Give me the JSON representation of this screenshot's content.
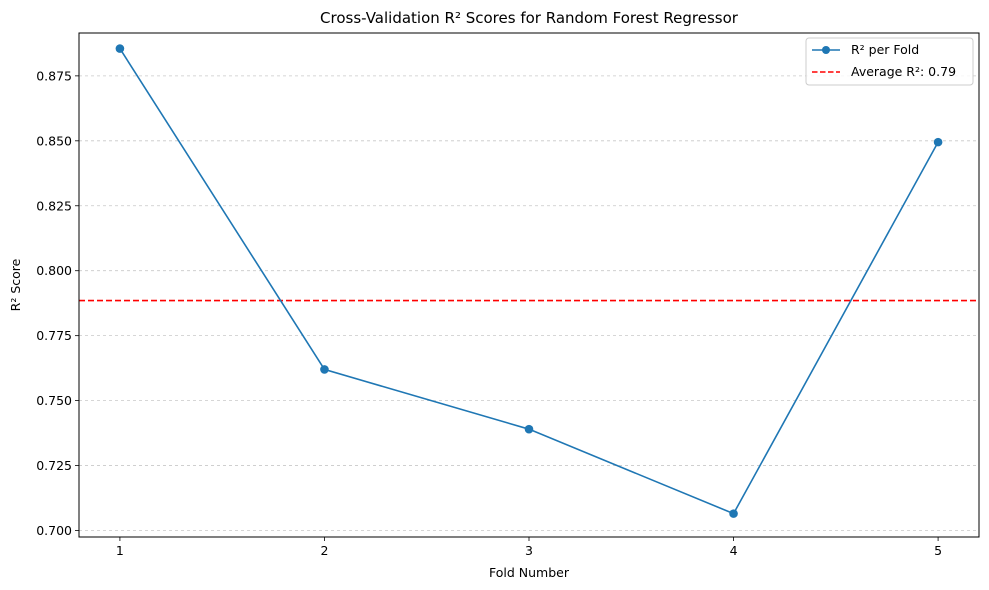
{
  "chart_data": {
    "type": "line",
    "title": "Cross-Validation R² Scores for Random Forest Regressor",
    "xlabel": "Fold Number",
    "ylabel": "R² Score",
    "x": [
      1,
      2,
      3,
      4,
      5
    ],
    "x_ticks": [
      "1",
      "2",
      "3",
      "4",
      "5"
    ],
    "xlim": [
      0.8,
      5.2
    ],
    "ylim": [
      0.6975,
      0.8915
    ],
    "y_ticks": [
      0.7,
      0.725,
      0.75,
      0.775,
      0.8,
      0.825,
      0.85,
      0.875
    ],
    "y_tick_labels": [
      "0.700",
      "0.725",
      "0.750",
      "0.775",
      "0.800",
      "0.825",
      "0.850",
      "0.875"
    ],
    "grid": "y-axis dashed",
    "legend_position": "top-right",
    "series": [
      {
        "name": "R² per Fold",
        "values": [
          0.8855,
          0.762,
          0.739,
          0.7065,
          0.8495
        ],
        "color": "#1f77b4",
        "marker": "circle",
        "line_style": "solid"
      }
    ],
    "reference_lines": [
      {
        "name": "Average R²: 0.79",
        "y": 0.7885,
        "color": "#ff0000",
        "line_style": "dashed"
      }
    ]
  }
}
